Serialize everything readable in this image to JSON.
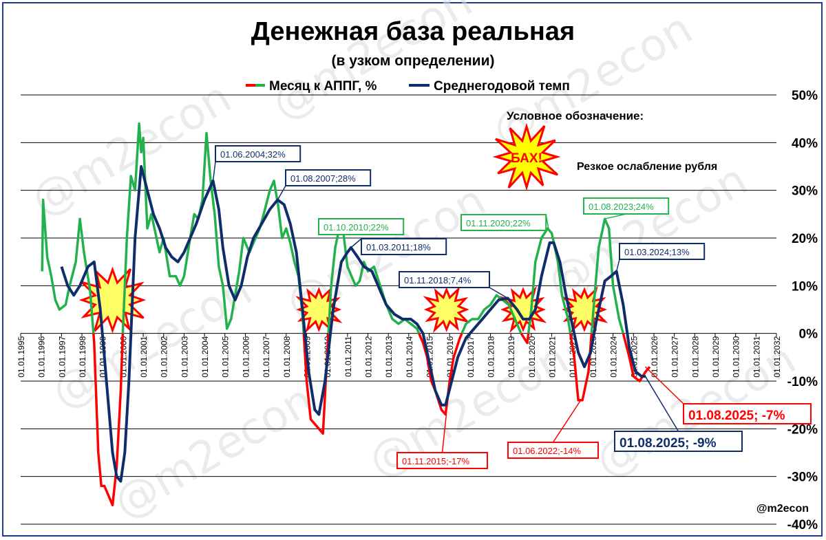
{
  "chart_data": {
    "type": "line",
    "title": "Денежная база реальная",
    "subtitle": "(в узком определении)",
    "legend": {
      "placement": "top-center"
    },
    "series": [
      {
        "name": "Месяц к АППГ, %",
        "color_positive": "#22b14c",
        "color_negative": "#ff0000",
        "points": [
          [
            1996.05,
            13
          ],
          [
            1996.1,
            28
          ],
          [
            1996.3,
            16
          ],
          [
            1996.5,
            12
          ],
          [
            1996.7,
            7
          ],
          [
            1996.9,
            5
          ],
          [
            1997.2,
            6
          ],
          [
            1997.4,
            10
          ],
          [
            1997.7,
            15
          ],
          [
            1997.9,
            24
          ],
          [
            1998.1,
            17
          ],
          [
            1998.4,
            9
          ],
          [
            1998.6,
            -2
          ],
          [
            1998.8,
            -25
          ],
          [
            1998.95,
            -32
          ],
          [
            1999.1,
            -32
          ],
          [
            1999.3,
            -34
          ],
          [
            1999.5,
            -36
          ],
          [
            1999.7,
            -28
          ],
          [
            1999.9,
            -12
          ],
          [
            2000.0,
            0
          ],
          [
            2000.2,
            20
          ],
          [
            2000.4,
            33
          ],
          [
            2000.6,
            30
          ],
          [
            2000.8,
            44
          ],
          [
            2000.9,
            38
          ],
          [
            2001.0,
            41
          ],
          [
            2001.2,
            22
          ],
          [
            2001.4,
            25
          ],
          [
            2001.6,
            21
          ],
          [
            2001.8,
            17
          ],
          [
            2002.0,
            20
          ],
          [
            2002.3,
            12
          ],
          [
            2002.6,
            12
          ],
          [
            2002.8,
            10
          ],
          [
            2003.0,
            12
          ],
          [
            2003.3,
            20
          ],
          [
            2003.5,
            25
          ],
          [
            2003.7,
            24
          ],
          [
            2003.9,
            28
          ],
          [
            2004.1,
            42
          ],
          [
            2004.3,
            32
          ],
          [
            2004.5,
            25
          ],
          [
            2004.7,
            14
          ],
          [
            2004.9,
            10
          ],
          [
            2005.1,
            1
          ],
          [
            2005.3,
            3
          ],
          [
            2005.5,
            8
          ],
          [
            2005.7,
            13
          ],
          [
            2005.9,
            20
          ],
          [
            2006.2,
            17
          ],
          [
            2006.4,
            19
          ],
          [
            2006.7,
            22
          ],
          [
            2006.9,
            25
          ],
          [
            2007.2,
            30
          ],
          [
            2007.4,
            32
          ],
          [
            2007.6,
            27
          ],
          [
            2007.8,
            20
          ],
          [
            2008.0,
            22
          ],
          [
            2008.2,
            19
          ],
          [
            2008.4,
            15
          ],
          [
            2008.6,
            12
          ],
          [
            2008.8,
            4
          ],
          [
            2009.0,
            -10
          ],
          [
            2009.2,
            -18
          ],
          [
            2009.4,
            -19
          ],
          [
            2009.6,
            -20
          ],
          [
            2009.8,
            -21
          ],
          [
            2010.0,
            -5
          ],
          [
            2010.2,
            10
          ],
          [
            2010.4,
            18
          ],
          [
            2010.6,
            22
          ],
          [
            2010.8,
            21
          ],
          [
            2011.0,
            14
          ],
          [
            2011.2,
            12
          ],
          [
            2011.4,
            10
          ],
          [
            2011.6,
            11
          ],
          [
            2011.8,
            15
          ],
          [
            2012.0,
            13
          ],
          [
            2012.3,
            14
          ],
          [
            2012.6,
            10
          ],
          [
            2012.9,
            6
          ],
          [
            2013.2,
            3
          ],
          [
            2013.5,
            2
          ],
          [
            2013.8,
            3
          ],
          [
            2014.1,
            2
          ],
          [
            2014.4,
            1
          ],
          [
            2014.7,
            -2
          ],
          [
            2014.9,
            -5
          ],
          [
            2015.1,
            -10
          ],
          [
            2015.3,
            -12
          ],
          [
            2015.6,
            -16
          ],
          [
            2015.8,
            -17
          ],
          [
            2016.0,
            -10
          ],
          [
            2016.2,
            -5
          ],
          [
            2016.5,
            -1
          ],
          [
            2016.8,
            2
          ],
          [
            2017.1,
            3
          ],
          [
            2017.4,
            3
          ],
          [
            2017.7,
            5
          ],
          [
            2018.0,
            6
          ],
          [
            2018.3,
            8
          ],
          [
            2018.6,
            7
          ],
          [
            2018.9,
            6
          ],
          [
            2019.2,
            3
          ],
          [
            2019.5,
            0
          ],
          [
            2019.8,
            -2
          ],
          [
            2020.0,
            5
          ],
          [
            2020.2,
            15
          ],
          [
            2020.5,
            20
          ],
          [
            2020.8,
            22
          ],
          [
            2021.0,
            21
          ],
          [
            2021.3,
            15
          ],
          [
            2021.5,
            8
          ],
          [
            2021.8,
            3
          ],
          [
            2022.1,
            -5
          ],
          [
            2022.3,
            -14
          ],
          [
            2022.5,
            -14
          ],
          [
            2022.8,
            -8
          ],
          [
            2023.1,
            8
          ],
          [
            2023.3,
            18
          ],
          [
            2023.6,
            24
          ],
          [
            2023.8,
            22
          ],
          [
            2024.0,
            10
          ],
          [
            2024.3,
            3
          ],
          [
            2024.5,
            0
          ],
          [
            2024.8,
            -5
          ],
          [
            2025.0,
            -9
          ],
          [
            2025.3,
            -10
          ],
          [
            2025.6,
            -8
          ],
          [
            2025.8,
            -7
          ]
        ]
      },
      {
        "name": "Среднегодовой темп",
        "color": "#0f2c6b",
        "points": [
          [
            1997.0,
            14
          ],
          [
            1997.3,
            10
          ],
          [
            1997.6,
            8
          ],
          [
            1997.9,
            10
          ],
          [
            1998.3,
            14
          ],
          [
            1998.6,
            15
          ],
          [
            1998.9,
            5
          ],
          [
            1999.1,
            -5
          ],
          [
            1999.3,
            -15
          ],
          [
            1999.5,
            -25
          ],
          [
            1999.7,
            -30
          ],
          [
            1999.9,
            -31
          ],
          [
            2000.1,
            -25
          ],
          [
            2000.3,
            -10
          ],
          [
            2000.6,
            20
          ],
          [
            2000.9,
            35
          ],
          [
            2001.2,
            30
          ],
          [
            2001.5,
            25
          ],
          [
            2001.8,
            22
          ],
          [
            2002.1,
            18
          ],
          [
            2002.4,
            16
          ],
          [
            2002.7,
            15
          ],
          [
            2003.0,
            17
          ],
          [
            2003.3,
            20
          ],
          [
            2003.6,
            23
          ],
          [
            2004.0,
            28
          ],
          [
            2004.42,
            32
          ],
          [
            2004.7,
            26
          ],
          [
            2004.9,
            18
          ],
          [
            2005.2,
            10
          ],
          [
            2005.5,
            7
          ],
          [
            2005.8,
            10
          ],
          [
            2006.1,
            16
          ],
          [
            2006.4,
            20
          ],
          [
            2006.8,
            23
          ],
          [
            2007.2,
            26
          ],
          [
            2007.58,
            28
          ],
          [
            2007.9,
            27
          ],
          [
            2008.2,
            23
          ],
          [
            2008.5,
            17
          ],
          [
            2008.8,
            5
          ],
          [
            2009.1,
            -8
          ],
          [
            2009.4,
            -16
          ],
          [
            2009.6,
            -17
          ],
          [
            2009.9,
            -10
          ],
          [
            2010.3,
            5
          ],
          [
            2010.7,
            15
          ],
          [
            2011.0,
            17
          ],
          [
            2011.17,
            18
          ],
          [
            2011.5,
            16
          ],
          [
            2011.8,
            14
          ],
          [
            2012.2,
            13
          ],
          [
            2012.5,
            10
          ],
          [
            2012.9,
            6
          ],
          [
            2013.3,
            4
          ],
          [
            2013.7,
            3
          ],
          [
            2014.1,
            3
          ],
          [
            2014.4,
            2
          ],
          [
            2014.7,
            0
          ],
          [
            2015.0,
            -6
          ],
          [
            2015.3,
            -12
          ],
          [
            2015.6,
            -15
          ],
          [
            2015.8,
            -15
          ],
          [
            2016.1,
            -10
          ],
          [
            2016.4,
            -5
          ],
          [
            2016.8,
            -1
          ],
          [
            2017.2,
            1
          ],
          [
            2017.6,
            3
          ],
          [
            2018.0,
            5
          ],
          [
            2018.4,
            7
          ],
          [
            2018.84,
            7.4
          ],
          [
            2019.3,
            5
          ],
          [
            2019.6,
            3
          ],
          [
            2019.9,
            3
          ],
          [
            2020.2,
            5
          ],
          [
            2020.5,
            12
          ],
          [
            2020.9,
            19
          ],
          [
            2021.1,
            19
          ],
          [
            2021.4,
            15
          ],
          [
            2021.7,
            8
          ],
          [
            2022.0,
            2
          ],
          [
            2022.3,
            -4
          ],
          [
            2022.6,
            -7
          ],
          [
            2022.9,
            -4
          ],
          [
            2023.2,
            3
          ],
          [
            2023.6,
            11
          ],
          [
            2023.9,
            12
          ],
          [
            2024.17,
            13
          ],
          [
            2024.5,
            6
          ],
          [
            2024.8,
            -3
          ],
          [
            2025.1,
            -8
          ],
          [
            2025.4,
            -9
          ],
          [
            2025.6,
            -9
          ]
        ]
      }
    ],
    "xlim": [
      1995.0,
      2032.0
    ],
    "ylim": [
      -40,
      50
    ],
    "yticks": [
      50,
      40,
      30,
      20,
      10,
      0,
      -10,
      -20,
      -30,
      -40
    ],
    "ytick_labels": [
      "50%",
      "40%",
      "30%",
      "20%",
      "10%",
      "0%",
      "-10%",
      "-20%",
      "-30%",
      "-40%"
    ],
    "xtick_labels": [
      "01.01.1995",
      "01.01.1996",
      "01.01.1997",
      "01.01.1998",
      "01.01.1999",
      "01.01.2000",
      "01.01.2001",
      "01.01.2002",
      "01.01.2003",
      "01.01.2004",
      "01.01.2005",
      "01.01.2006",
      "01.01.2007",
      "01.01.2008",
      "01.01.2009",
      "01.01.2010",
      "01.01.2011",
      "01.01.2012",
      "01.01.2013",
      "01.01.2014",
      "01.01.2015",
      "01.01.2016",
      "01.01.2017",
      "01.01.2018",
      "01.01.2019",
      "01.01.2020",
      "01.01.2021",
      "01.01.2022",
      "01.01.2023",
      "01.01.2024",
      "01.01.2025",
      "01.01.2026",
      "01.01.2027",
      "01.01.2028",
      "01.01.2029",
      "01.01.2030",
      "01.01.2031",
      "01.01.2032"
    ],
    "grid": true,
    "annotations": [
      {
        "text": "01.06.2004;32%",
        "x": 2004.42,
        "y": 32,
        "series": 1
      },
      {
        "text": "01.08.2007;28%",
        "x": 2007.58,
        "y": 28,
        "series": 1
      },
      {
        "text": "01.10.2010;22%",
        "x": 2010.75,
        "y": 22,
        "series": 0
      },
      {
        "text": "01.03.2011;18%",
        "x": 2011.17,
        "y": 18,
        "series": 1
      },
      {
        "text": "01.11.2018;7,4%",
        "x": 2018.84,
        "y": 7.4,
        "series": 1
      },
      {
        "text": "01.11.2020;22%",
        "x": 2020.84,
        "y": 22,
        "series": 0
      },
      {
        "text": "01.08.2023;24%",
        "x": 2023.58,
        "y": 24,
        "series": 0
      },
      {
        "text": "01.03.2024;13%",
        "x": 2024.17,
        "y": 13,
        "series": 1
      },
      {
        "text": "01.11.2015;-17%",
        "x": 2015.84,
        "y": -17,
        "series": 0
      },
      {
        "text": "01.06.2022;-14%",
        "x": 2022.42,
        "y": -14,
        "series": 0
      },
      {
        "text": "01.08.2025; -7%",
        "x": 2025.58,
        "y": -7,
        "series": 0
      },
      {
        "text": "01.08.2025; -9%",
        "x": 2025.58,
        "y": -9,
        "series": 1
      }
    ],
    "bursts": [
      {
        "x": 1999.5,
        "y": 7
      },
      {
        "x": 2009.6,
        "y": 5
      },
      {
        "x": 2015.85,
        "y": 5
      },
      {
        "x": 2019.6,
        "y": 5
      },
      {
        "x": 2022.6,
        "y": 5
      }
    ],
    "legend_note": {
      "title": "Условное обозначение:",
      "burst_text": "БАХ!",
      "text": "Резкое ослабление рубля"
    },
    "credit": "@m2econ",
    "watermark": "@m2econ"
  }
}
